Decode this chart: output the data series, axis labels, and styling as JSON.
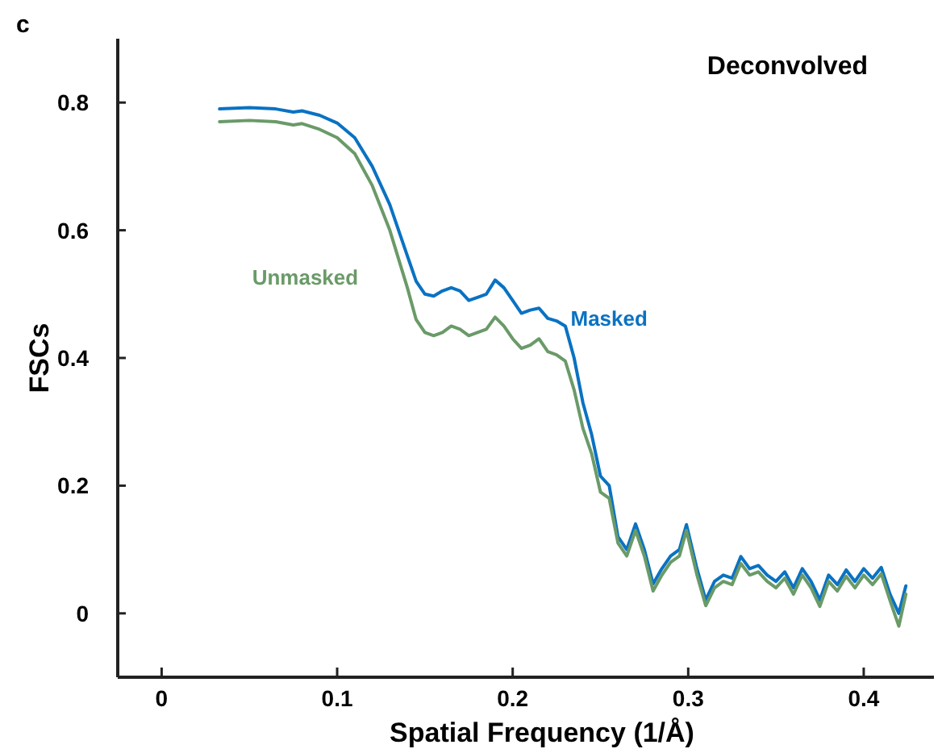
{
  "chart_data": {
    "type": "line",
    "title": "Deconvolved",
    "xlabel": "Spatial Frequency (1/Å)",
    "ylabel": "FSCs",
    "annotations": [
      "c"
    ],
    "xlim": [
      -0.025,
      0.44
    ],
    "ylim": [
      -0.1,
      0.9
    ],
    "xticks": [
      0,
      0.1,
      0.2,
      0.3,
      0.4
    ],
    "yticks": [
      0,
      0.2,
      0.4,
      0.6,
      0.8
    ],
    "grid": false,
    "marker": "none",
    "line_style": "solid",
    "x": [
      0.033,
      0.05,
      0.065,
      0.075,
      0.08,
      0.09,
      0.1,
      0.11,
      0.12,
      0.13,
      0.14,
      0.145,
      0.15,
      0.155,
      0.16,
      0.165,
      0.17,
      0.175,
      0.18,
      0.185,
      0.19,
      0.195,
      0.2,
      0.205,
      0.21,
      0.215,
      0.22,
      0.225,
      0.23,
      0.235,
      0.24,
      0.245,
      0.25,
      0.255,
      0.26,
      0.265,
      0.27,
      0.275,
      0.28,
      0.285,
      0.29,
      0.295,
      0.299,
      0.305,
      0.31,
      0.315,
      0.32,
      0.325,
      0.33,
      0.335,
      0.34,
      0.345,
      0.35,
      0.355,
      0.36,
      0.365,
      0.37,
      0.375,
      0.38,
      0.385,
      0.39,
      0.395,
      0.4,
      0.405,
      0.41,
      0.415,
      0.42,
      0.424
    ],
    "series": [
      {
        "name": "Masked",
        "color": "#0a72c2",
        "values": [
          0.79,
          0.792,
          0.79,
          0.785,
          0.787,
          0.78,
          0.768,
          0.745,
          0.7,
          0.64,
          0.56,
          0.52,
          0.5,
          0.497,
          0.505,
          0.51,
          0.505,
          0.49,
          0.495,
          0.5,
          0.522,
          0.51,
          0.49,
          0.47,
          0.475,
          0.478,
          0.462,
          0.458,
          0.45,
          0.4,
          0.33,
          0.28,
          0.215,
          0.2,
          0.12,
          0.1,
          0.14,
          0.1,
          0.046,
          0.07,
          0.09,
          0.1,
          0.139,
          0.07,
          0.021,
          0.05,
          0.06,
          0.055,
          0.089,
          0.07,
          0.075,
          0.06,
          0.05,
          0.065,
          0.04,
          0.07,
          0.05,
          0.021,
          0.06,
          0.045,
          0.068,
          0.05,
          0.07,
          0.055,
          0.072,
          0.03,
          0.0,
          0.043
        ]
      },
      {
        "name": "Unmasked",
        "color": "#6a9a68",
        "values": [
          0.77,
          0.772,
          0.77,
          0.765,
          0.767,
          0.758,
          0.745,
          0.72,
          0.67,
          0.6,
          0.51,
          0.46,
          0.44,
          0.435,
          0.44,
          0.45,
          0.445,
          0.435,
          0.44,
          0.445,
          0.464,
          0.45,
          0.43,
          0.415,
          0.42,
          0.43,
          0.41,
          0.405,
          0.395,
          0.35,
          0.29,
          0.25,
          0.19,
          0.18,
          0.11,
          0.09,
          0.13,
          0.09,
          0.035,
          0.06,
          0.08,
          0.09,
          0.13,
          0.06,
          0.012,
          0.04,
          0.05,
          0.045,
          0.078,
          0.06,
          0.065,
          0.05,
          0.04,
          0.055,
          0.03,
          0.06,
          0.04,
          0.011,
          0.05,
          0.035,
          0.058,
          0.04,
          0.06,
          0.045,
          0.062,
          0.02,
          -0.02,
          0.03
        ]
      }
    ]
  }
}
